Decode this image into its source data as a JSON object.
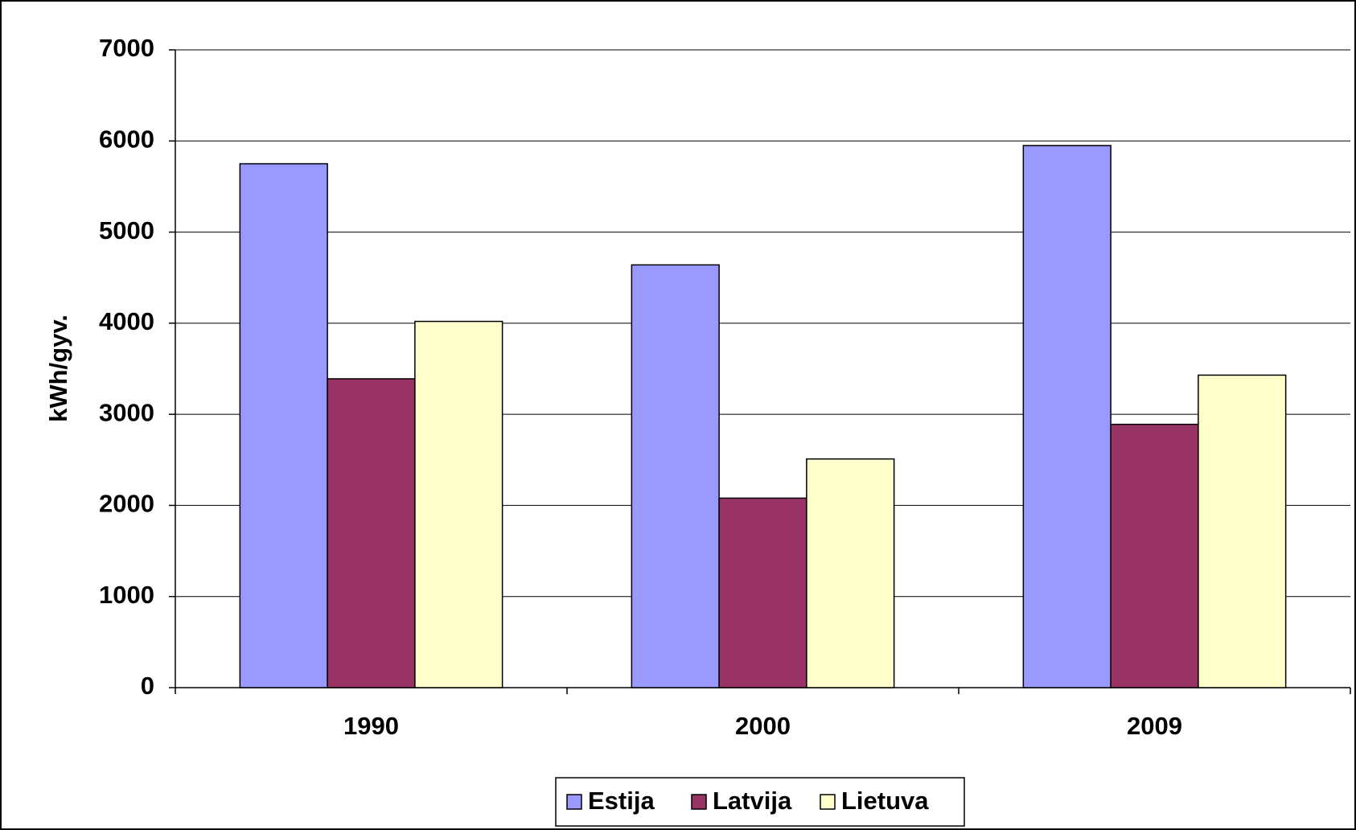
{
  "chart_data": {
    "type": "bar",
    "y_label": "kWh/gyv.",
    "categories": [
      "1990",
      "2000",
      "2009"
    ],
    "series": [
      {
        "name": "Estija",
        "color": "#9999ff",
        "values": [
          5750,
          4640,
          5950
        ]
      },
      {
        "name": "Latvija",
        "color": "#993366",
        "values": [
          3390,
          2080,
          2890
        ]
      },
      {
        "name": "Lietuva",
        "color": "#ffffcc",
        "values": [
          4020,
          2510,
          3430
        ]
      }
    ],
    "ylim": [
      0,
      7000
    ],
    "yticks": [
      0,
      1000,
      2000,
      3000,
      4000,
      5000,
      6000,
      7000
    ],
    "grid": true,
    "legend": "bottom"
  }
}
